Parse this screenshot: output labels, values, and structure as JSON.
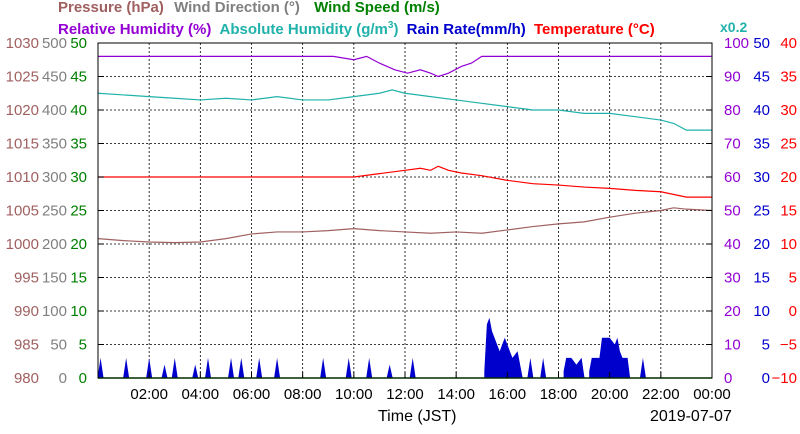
{
  "legend": {
    "pressure": "Pressure (hPa)",
    "wind_direction": "Wind Direction (°)",
    "wind_speed": "Wind Speed (m/s)",
    "relative_humidity": "Relative Humidity (%)",
    "absolute_humidity": "Absolute Humidity (g/m",
    "absolute_humidity_sup": "3",
    "absolute_humidity_end": ")",
    "rain_rate": "Rain Rate(mm/h)",
    "temperature": "Temperature (°C)",
    "abs_scale_note": "x0.2"
  },
  "x_axis_title": "Time (JST)",
  "date_label": "2019-07-07",
  "colors": {
    "pressure": "#a06060",
    "wind_direction": "#808080",
    "wind_speed": "#008000",
    "relative_humidity": "#9400d3",
    "absolute_humidity": "#20b2aa",
    "rain_rate": "#0000cd",
    "temperature": "#ff0000",
    "grid": "#000000"
  },
  "chart_data": {
    "type": "line",
    "x_tick_labels": [
      "02:00",
      "04:00",
      "06:00",
      "08:00",
      "10:00",
      "12:00",
      "14:00",
      "16:00",
      "18:00",
      "20:00",
      "22:00",
      "00:00"
    ],
    "x_range_hours": [
      0,
      24
    ],
    "axes": {
      "pressure": {
        "range": [
          980,
          1030
        ],
        "ticks": [
          "1030",
          "1025",
          "1020",
          "1015",
          "1010",
          "1005",
          "1000",
          "995",
          "990",
          "985",
          "980"
        ]
      },
      "wind_direction": {
        "range": [
          0,
          500
        ],
        "ticks": [
          "500",
          "450",
          "400",
          "350",
          "300",
          "250",
          "200",
          "150",
          "100",
          "50",
          "0"
        ]
      },
      "wind_speed": {
        "range": [
          0,
          50
        ],
        "ticks": [
          "50",
          "45",
          "40",
          "35",
          "30",
          "25",
          "20",
          "15",
          "10",
          "5",
          "0"
        ]
      },
      "relative_humidity": {
        "range": [
          0,
          100
        ],
        "ticks": [
          "100",
          "90",
          "80",
          "70",
          "60",
          "50",
          "40",
          "30",
          "20",
          "10",
          "0"
        ]
      },
      "rain_rate": {
        "range": [
          0,
          50
        ],
        "ticks": [
          "50",
          "45",
          "40",
          "35",
          "30",
          "25",
          "20",
          "15",
          "10",
          "5",
          "0"
        ]
      },
      "temperature": {
        "range": [
          -10,
          40
        ],
        "ticks": [
          "40",
          "35",
          "30",
          "25",
          "20",
          "15",
          "10",
          "5",
          "0",
          "−5",
          "−10"
        ]
      }
    },
    "series": [
      {
        "name": "Relative Humidity (%)",
        "axis": "relative_humidity",
        "x": [
          0,
          7.5,
          8,
          9.2,
          10,
          10.5,
          11,
          11.6,
          12.1,
          12.6,
          13,
          13.3,
          13.7,
          14.2,
          14.6,
          15,
          16,
          17,
          18,
          19,
          20,
          21,
          22,
          23,
          24
        ],
        "y": [
          96,
          96,
          96,
          96,
          95,
          96,
          94,
          92,
          91,
          92,
          91,
          90,
          91,
          93,
          94,
          96,
          96,
          96,
          96,
          96,
          96,
          96,
          96,
          96,
          96
        ]
      },
      {
        "name": "Absolute Humidity (g/m3) x0.2",
        "axis": "relative_humidity",
        "x": [
          0,
          1,
          2,
          3,
          4,
          5,
          6,
          7,
          8,
          9,
          10,
          11,
          11.5,
          12,
          13,
          14,
          15,
          16,
          17,
          18,
          19,
          20,
          21,
          22,
          22.5,
          23,
          24
        ],
        "y": [
          85,
          84.5,
          84,
          83.5,
          83,
          83.5,
          83,
          84,
          83,
          83,
          84,
          85,
          86,
          85,
          84,
          83,
          82,
          81,
          80,
          80,
          79,
          79,
          78,
          77,
          76,
          74,
          74
        ]
      },
      {
        "name": "Temperature (°C)",
        "axis": "temperature",
        "x": [
          0,
          2,
          4,
          6,
          8,
          10,
          11,
          12,
          12.6,
          13,
          13.3,
          13.7,
          14.2,
          15,
          16,
          17,
          18,
          19,
          20,
          21,
          22,
          23,
          24
        ],
        "y": [
          20,
          20,
          20,
          20,
          20,
          20,
          20.5,
          21,
          21.3,
          21,
          21.6,
          21,
          20.6,
          20.2,
          19.5,
          19,
          18.8,
          18.5,
          18.3,
          18,
          17.8,
          17,
          17
        ]
      },
      {
        "name": "Pressure (hPa)",
        "axis": "pressure",
        "x": [
          0,
          1,
          2,
          3,
          4,
          5,
          6,
          7,
          8,
          9,
          10,
          11,
          12,
          13,
          14,
          15,
          16,
          17,
          18,
          19,
          20,
          21,
          22,
          22.5,
          23,
          24
        ],
        "y": [
          1000.8,
          1000.5,
          1000.3,
          1000.2,
          1000.3,
          1000.8,
          1001.5,
          1001.8,
          1001.8,
          1002,
          1002.3,
          1002,
          1001.8,
          1001.6,
          1001.8,
          1001.6,
          1002.1,
          1002.6,
          1003,
          1003.3,
          1004,
          1004.6,
          1005,
          1005.4,
          1005.2,
          1005
        ]
      }
    ],
    "rain_rate": {
      "name": "Rain Rate(mm/h)",
      "axis": "rain_rate",
      "events": [
        {
          "x": 0.1,
          "y": 3
        },
        {
          "x": 1.1,
          "y": 3
        },
        {
          "x": 2.0,
          "y": 3
        },
        {
          "x": 2.6,
          "y": 2
        },
        {
          "x": 3.0,
          "y": 3
        },
        {
          "x": 3.8,
          "y": 2
        },
        {
          "x": 4.3,
          "y": 3
        },
        {
          "x": 5.2,
          "y": 3
        },
        {
          "x": 5.6,
          "y": 3
        },
        {
          "x": 6.3,
          "y": 3
        },
        {
          "x": 7.0,
          "y": 3
        },
        {
          "x": 8.8,
          "y": 3
        },
        {
          "x": 9.8,
          "y": 3
        },
        {
          "x": 10.6,
          "y": 3
        },
        {
          "x": 11.4,
          "y": 2
        },
        {
          "x": 12.3,
          "y": 3
        },
        {
          "x": 16.9,
          "y": 3
        },
        {
          "x": 17.4,
          "y": 3
        },
        {
          "x": 18.9,
          "y": 3
        },
        {
          "x": 21.3,
          "y": 3
        }
      ],
      "blocks": [
        {
          "x": [
            15.1,
            15.2,
            15.3,
            15.4,
            15.5,
            15.6,
            15.7,
            15.8,
            15.9,
            16.0,
            16.1,
            16.2,
            16.4,
            16.6
          ],
          "y": [
            1,
            8,
            9,
            7,
            6,
            5,
            4,
            5,
            6,
            5,
            4,
            3,
            4,
            0
          ]
        },
        {
          "x": [
            18.2,
            18.3,
            18.5,
            18.7,
            18.9,
            19.0
          ],
          "y": [
            1,
            3,
            3,
            2,
            3,
            0
          ]
        },
        {
          "x": [
            19.2,
            19.3,
            19.6,
            19.7,
            19.8,
            20.0,
            20.2,
            20.3,
            20.4,
            20.5,
            20.7,
            20.8
          ],
          "y": [
            1,
            3,
            3,
            6,
            6,
            6,
            5,
            6,
            4,
            3,
            3,
            0
          ]
        }
      ]
    },
    "wind_speed_level": 0,
    "grid": true
  }
}
